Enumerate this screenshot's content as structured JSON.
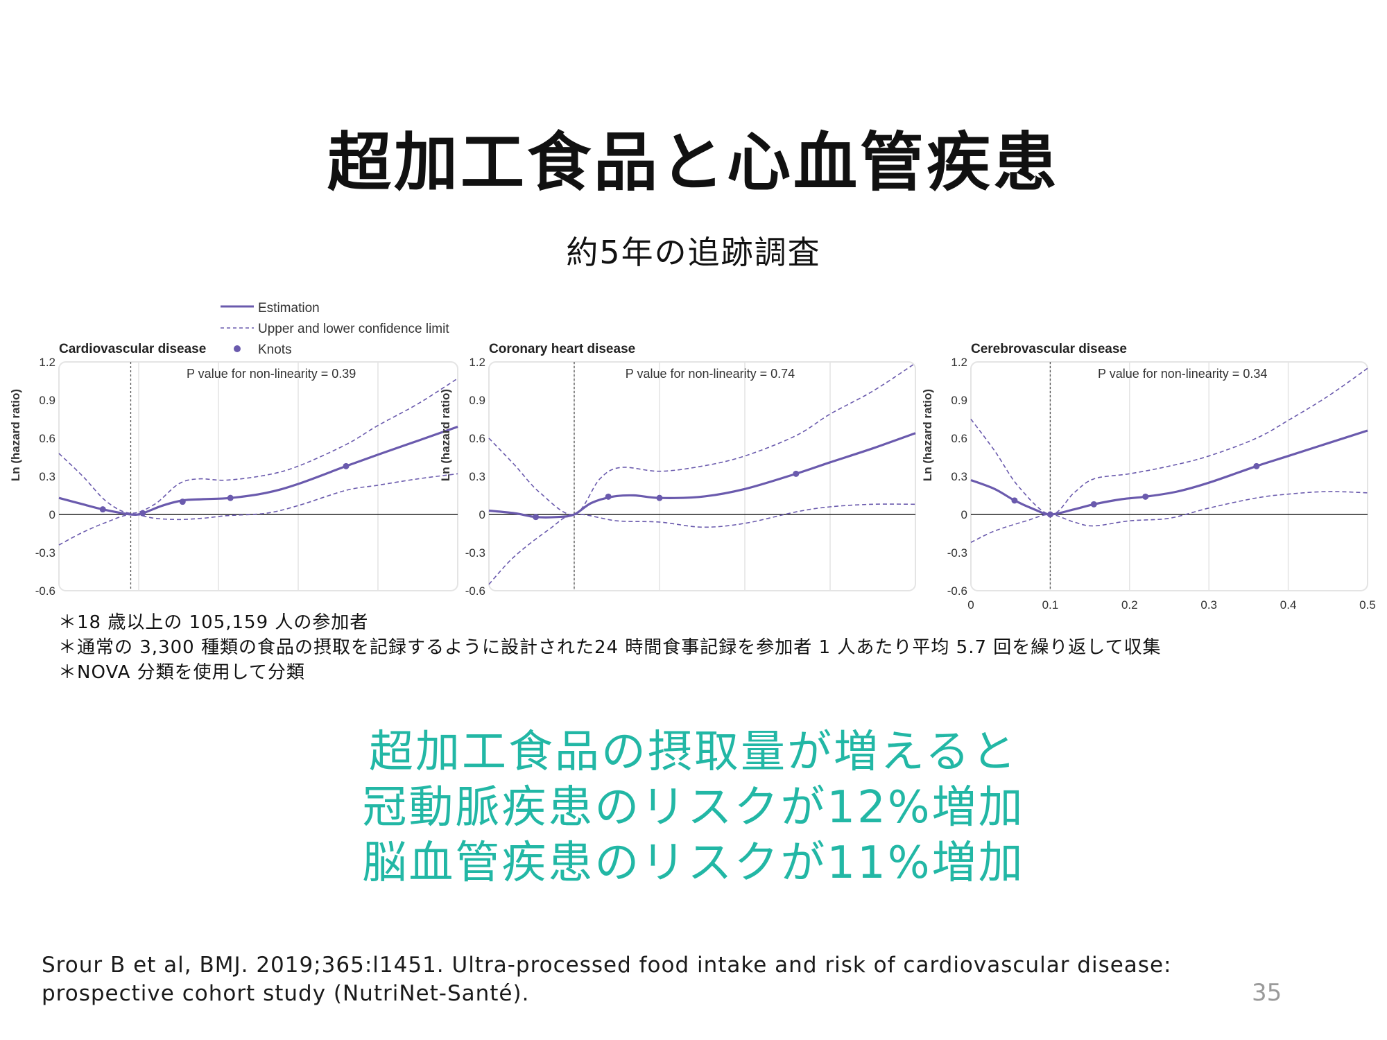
{
  "slide": {
    "title": "超加工食品と心血管疾患",
    "subtitle": "約5年の追跡調査",
    "notes": [
      "＊18 歳以上の 105,159 人の参加者",
      "＊通常の 3,300 種類の食品の摂取を記録するように設計された24 時間食事記録を参加者 1 人あたり平均 5.7 回を繰り返して収集",
      "＊NOVA 分類を使用して分類"
    ],
    "highlight": [
      "超加工食品の摂取量が増えると",
      "冠動脈疾患のリスクが12%増加",
      "脳血管疾患のリスクが11%増加"
    ],
    "citation": [
      "Srour B et al, BMJ. 2019;365:l1451. Ultra-processed food intake and risk of cardiovascular disease:",
      "prospective cohort study (NutriNet-Santé)."
    ],
    "page_number": "35"
  },
  "legend": {
    "estimation": "Estimation",
    "ci": "Upper and lower confidence limit",
    "knots": "Knots"
  },
  "colors": {
    "series": "#6a5aad",
    "highlight": "#22b7a5",
    "grid": "#e4e4e4",
    "reference": "#555555"
  },
  "chart_data": [
    {
      "type": "line",
      "title": "Cardiovascular disease",
      "annotation": "P value for non-linearity = 0.39",
      "ylabel": "Ln (hazard ratio)",
      "ylim": [
        -0.6,
        1.2
      ],
      "xlim": [
        0,
        0.5
      ],
      "yticks": [
        "1.2",
        "0.9",
        "0.6",
        "0.3",
        "0",
        "-0.3",
        "-0.6"
      ],
      "xticks": [],
      "reference_x": 0.09,
      "estimation": [
        [
          0,
          0.13
        ],
        [
          0.03,
          0.08
        ],
        [
          0.055,
          0.04
        ],
        [
          0.09,
          0
        ],
        [
          0.105,
          0.01
        ],
        [
          0.13,
          0.07
        ],
        [
          0.155,
          0.11
        ],
        [
          0.18,
          0.12
        ],
        [
          0.215,
          0.13
        ],
        [
          0.26,
          0.17
        ],
        [
          0.3,
          0.24
        ],
        [
          0.36,
          0.38
        ],
        [
          0.4,
          0.47
        ],
        [
          0.45,
          0.58
        ],
        [
          0.5,
          0.69
        ]
      ],
      "upper": [
        [
          0,
          0.48
        ],
        [
          0.03,
          0.3
        ],
        [
          0.06,
          0.1
        ],
        [
          0.09,
          0.01
        ],
        [
          0.12,
          0.08
        ],
        [
          0.15,
          0.24
        ],
        [
          0.175,
          0.28
        ],
        [
          0.21,
          0.27
        ],
        [
          0.26,
          0.31
        ],
        [
          0.3,
          0.38
        ],
        [
          0.36,
          0.55
        ],
        [
          0.4,
          0.7
        ],
        [
          0.45,
          0.87
        ],
        [
          0.5,
          1.07
        ]
      ],
      "lower": [
        [
          0,
          -0.24
        ],
        [
          0.03,
          -0.14
        ],
        [
          0.06,
          -0.06
        ],
        [
          0.09,
          0
        ],
        [
          0.12,
          -0.03
        ],
        [
          0.15,
          -0.04
        ],
        [
          0.18,
          -0.03
        ],
        [
          0.21,
          -0.01
        ],
        [
          0.26,
          0.01
        ],
        [
          0.3,
          0.07
        ],
        [
          0.36,
          0.19
        ],
        [
          0.4,
          0.23
        ],
        [
          0.45,
          0.28
        ],
        [
          0.5,
          0.32
        ]
      ],
      "knots": [
        [
          0.055,
          0.04
        ],
        [
          0.105,
          0.01
        ],
        [
          0.155,
          0.1
        ],
        [
          0.215,
          0.13
        ],
        [
          0.36,
          0.38
        ]
      ]
    },
    {
      "type": "line",
      "title": "Coronary heart disease",
      "annotation": "P value for non-linearity = 0.74",
      "ylabel": "Ln (hazard ratio)",
      "ylim": [
        -0.6,
        1.2
      ],
      "xlim": [
        0,
        0.5
      ],
      "yticks": [
        "1.2",
        "0.9",
        "0.6",
        "0.3",
        "0",
        "-0.3",
        "-0.6"
      ],
      "xticks": [],
      "reference_x": 0.1,
      "estimation": [
        [
          0,
          0.03
        ],
        [
          0.03,
          0.01
        ],
        [
          0.055,
          -0.02
        ],
        [
          0.08,
          -0.02
        ],
        [
          0.1,
          0
        ],
        [
          0.12,
          0.09
        ],
        [
          0.145,
          0.14
        ],
        [
          0.17,
          0.15
        ],
        [
          0.2,
          0.13
        ],
        [
          0.25,
          0.14
        ],
        [
          0.3,
          0.2
        ],
        [
          0.36,
          0.32
        ],
        [
          0.4,
          0.41
        ],
        [
          0.45,
          0.52
        ],
        [
          0.5,
          0.64
        ]
      ],
      "upper": [
        [
          0,
          0.6
        ],
        [
          0.03,
          0.39
        ],
        [
          0.06,
          0.17
        ],
        [
          0.1,
          0
        ],
        [
          0.13,
          0.28
        ],
        [
          0.155,
          0.37
        ],
        [
          0.2,
          0.34
        ],
        [
          0.25,
          0.38
        ],
        [
          0.3,
          0.46
        ],
        [
          0.36,
          0.62
        ],
        [
          0.4,
          0.79
        ],
        [
          0.45,
          0.97
        ],
        [
          0.5,
          1.19
        ]
      ],
      "lower": [
        [
          0,
          -0.55
        ],
        [
          0.03,
          -0.33
        ],
        [
          0.07,
          -0.12
        ],
        [
          0.1,
          0
        ],
        [
          0.15,
          -0.05
        ],
        [
          0.2,
          -0.06
        ],
        [
          0.25,
          -0.1
        ],
        [
          0.3,
          -0.07
        ],
        [
          0.36,
          0.02
        ],
        [
          0.4,
          0.06
        ],
        [
          0.45,
          0.08
        ],
        [
          0.5,
          0.08
        ]
      ],
      "knots": [
        [
          0.055,
          -0.02
        ],
        [
          0.14,
          0.14
        ],
        [
          0.2,
          0.13
        ],
        [
          0.36,
          0.32
        ]
      ]
    },
    {
      "type": "line",
      "title": "Cerebrovascular disease",
      "annotation": "P value for non-linearity = 0.34",
      "ylabel": "Ln (hazard ratio)",
      "ylim": [
        -0.6,
        1.2
      ],
      "xlim": [
        0,
        0.5
      ],
      "yticks": [
        "1.2",
        "0.9",
        "0.6",
        "0.3",
        "0",
        "-0.3",
        "-0.6"
      ],
      "xticks": [
        "0",
        "0.1",
        "0.2",
        "0.3",
        "0.4",
        "0.5"
      ],
      "reference_x": 0.1,
      "estimation": [
        [
          0,
          0.27
        ],
        [
          0.03,
          0.2
        ],
        [
          0.055,
          0.11
        ],
        [
          0.08,
          0.04
        ],
        [
          0.1,
          0
        ],
        [
          0.13,
          0.04
        ],
        [
          0.155,
          0.08
        ],
        [
          0.19,
          0.12
        ],
        [
          0.22,
          0.14
        ],
        [
          0.26,
          0.18
        ],
        [
          0.3,
          0.25
        ],
        [
          0.36,
          0.38
        ],
        [
          0.4,
          0.46
        ],
        [
          0.45,
          0.56
        ],
        [
          0.5,
          0.66
        ]
      ],
      "upper": [
        [
          0,
          0.75
        ],
        [
          0.03,
          0.5
        ],
        [
          0.06,
          0.22
        ],
        [
          0.1,
          0
        ],
        [
          0.13,
          0.17
        ],
        [
          0.155,
          0.28
        ],
        [
          0.2,
          0.32
        ],
        [
          0.25,
          0.38
        ],
        [
          0.3,
          0.46
        ],
        [
          0.36,
          0.6
        ],
        [
          0.4,
          0.74
        ],
        [
          0.45,
          0.93
        ],
        [
          0.5,
          1.15
        ]
      ],
      "lower": [
        [
          0,
          -0.22
        ],
        [
          0.03,
          -0.13
        ],
        [
          0.07,
          -0.05
        ],
        [
          0.1,
          0
        ],
        [
          0.13,
          -0.06
        ],
        [
          0.155,
          -0.09
        ],
        [
          0.2,
          -0.05
        ],
        [
          0.25,
          -0.03
        ],
        [
          0.3,
          0.05
        ],
        [
          0.36,
          0.13
        ],
        [
          0.4,
          0.16
        ],
        [
          0.45,
          0.18
        ],
        [
          0.5,
          0.17
        ]
      ],
      "knots": [
        [
          0.055,
          0.11
        ],
        [
          0.1,
          0
        ],
        [
          0.155,
          0.08
        ],
        [
          0.22,
          0.14
        ],
        [
          0.36,
          0.38
        ]
      ]
    }
  ]
}
